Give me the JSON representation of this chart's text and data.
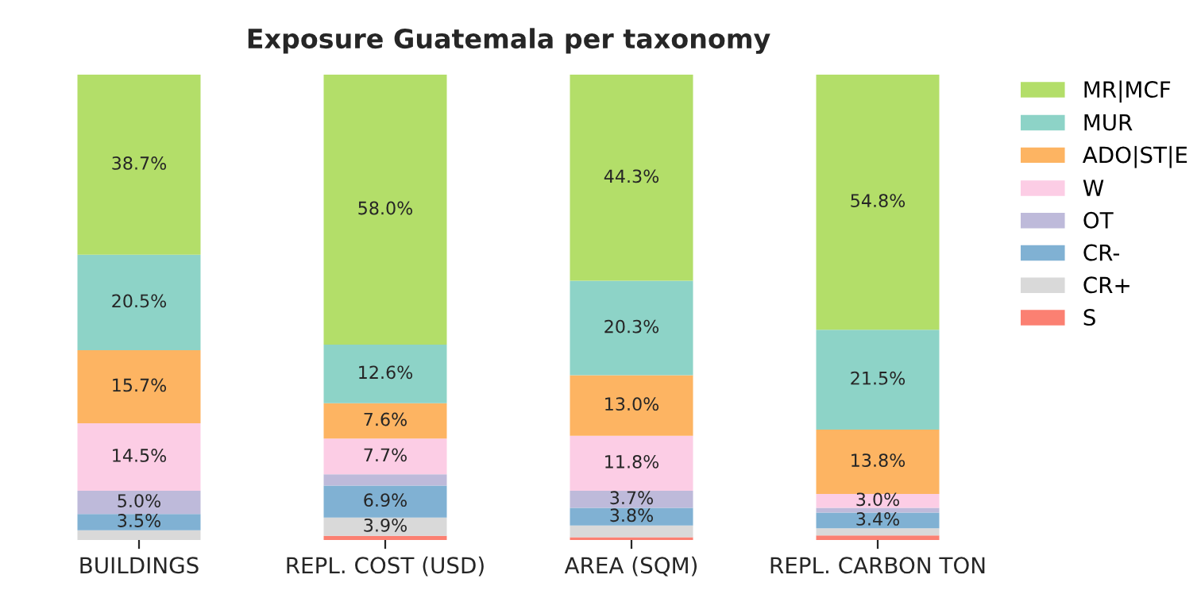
{
  "chart_data": {
    "type": "bar",
    "stacked": true,
    "title": "Exposure Guatemala per taxonomy",
    "categories": [
      "BUILDINGS",
      "REPL. COST (USD)",
      "AREA (SQM)",
      "REPL. CARBON TON"
    ],
    "legend": "top right",
    "grid": false,
    "series": [
      {
        "name": "S",
        "color": "#fb8072",
        "values": [
          0.0,
          0.9,
          0.6,
          1.0
        ],
        "value_labels": [
          null,
          null,
          null,
          null
        ]
      },
      {
        "name": "CR+",
        "color": "#d9d9d9",
        "values": [
          2.1,
          3.9,
          2.5,
          1.5
        ],
        "value_labels": [
          null,
          "3.9%",
          null,
          null
        ]
      },
      {
        "name": "CR-",
        "color": "#80b1d3",
        "values": [
          3.5,
          6.9,
          3.8,
          3.4
        ],
        "value_labels": [
          "3.5%",
          "6.9%",
          "3.8%",
          "3.4%"
        ]
      },
      {
        "name": "OT",
        "color": "#bebada",
        "values": [
          5.0,
          2.4,
          3.7,
          1.0
        ],
        "value_labels": [
          "5.0%",
          null,
          "3.7%",
          null
        ]
      },
      {
        "name": "W",
        "color": "#fccde5",
        "values": [
          14.5,
          7.7,
          11.8,
          3.0
        ],
        "value_labels": [
          "14.5%",
          "7.7%",
          "11.8%",
          "3.0%"
        ]
      },
      {
        "name": "ADO|ST|E",
        "color": "#fdb462",
        "values": [
          15.7,
          7.6,
          13.0,
          13.8
        ],
        "value_labels": [
          "15.7%",
          "7.6%",
          "13.0%",
          "13.8%"
        ]
      },
      {
        "name": "MUR",
        "color": "#8dd3c7",
        "values": [
          20.5,
          12.6,
          20.3,
          21.5
        ],
        "value_labels": [
          "20.5%",
          "12.6%",
          "20.3%",
          "21.5%"
        ]
      },
      {
        "name": "MR|MCF",
        "color": "#b3de69",
        "values": [
          38.7,
          58.0,
          44.3,
          54.8
        ],
        "value_labels": [
          "38.7%",
          "58.0%",
          "44.3%",
          "54.8%"
        ]
      }
    ]
  }
}
